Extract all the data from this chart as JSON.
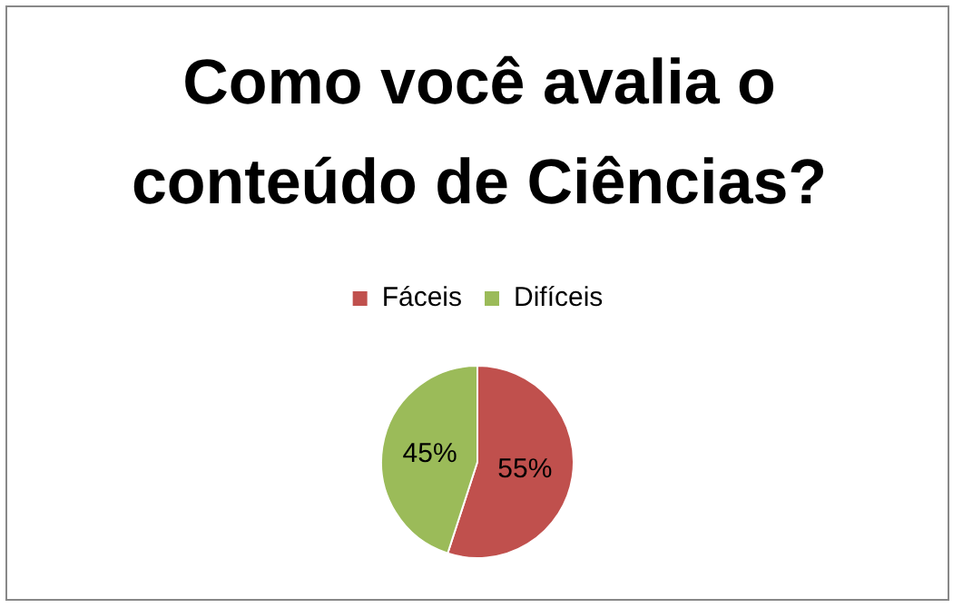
{
  "chart_data": {
    "type": "pie",
    "title": "Como você avalia o conteúdo de Ciências?",
    "categories": [
      "Fáceis",
      "Difíceis"
    ],
    "values": [
      55,
      45
    ],
    "colors": [
      "#c0504d",
      "#9bbb59"
    ],
    "value_labels": [
      "55%",
      "45%"
    ],
    "legend": "top"
  }
}
